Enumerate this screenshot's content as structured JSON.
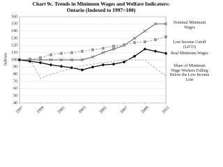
{
  "chart_data": {
    "type": "line",
    "title": "Chart 9c. Trends in Minimum Wages and Welfare Indicators: Ontario (Indexed to 1997=100)",
    "y_label": "Indexes",
    "x": [
      1997,
      1998,
      1999,
      2000,
      2001,
      2002,
      2003,
      2004,
      2005,
      2006,
      2007,
      2008,
      2009,
      2010,
      2011
    ],
    "xlim": [
      1997,
      2011
    ],
    "xticks": [
      1997,
      1999,
      2001,
      2003,
      2005,
      2007,
      2009,
      2011
    ],
    "ylim": [
      40,
      160
    ],
    "yticks": [
      40,
      50,
      60,
      70,
      80,
      90,
      100,
      110,
      120,
      130,
      140,
      150,
      160
    ],
    "grid": true,
    "series": [
      {
        "name": "Nominal Minimum Wages",
        "color": "#777777",
        "values": [
          100,
          100,
          100,
          100,
          100,
          100,
          100,
          104,
          110,
          115,
          120,
          130,
          140,
          150,
          150
        ]
      },
      {
        "name": "Low Income Cutoff (LICO)",
        "color": "#999999",
        "values": [
          100,
          101,
          103,
          107,
          109,
          110,
          112,
          114,
          116,
          119,
          121,
          124,
          125,
          128,
          132
        ]
      },
      {
        "name": "Real Minimum Wages",
        "color": "#000000",
        "values": [
          100,
          98,
          96,
          93,
          91,
          89,
          86,
          90,
          93,
          94,
          97,
          105,
          115,
          112,
          109
        ]
      },
      {
        "name": "Share of Minimum Wage Workers Falling Below the Low Income Line",
        "color": "#aaaaaa",
        "values": [
          100,
          101,
          74,
          80,
          84,
          88,
          92,
          94,
          96,
          98,
          100,
          100,
          100,
          88,
          78
        ]
      }
    ]
  }
}
